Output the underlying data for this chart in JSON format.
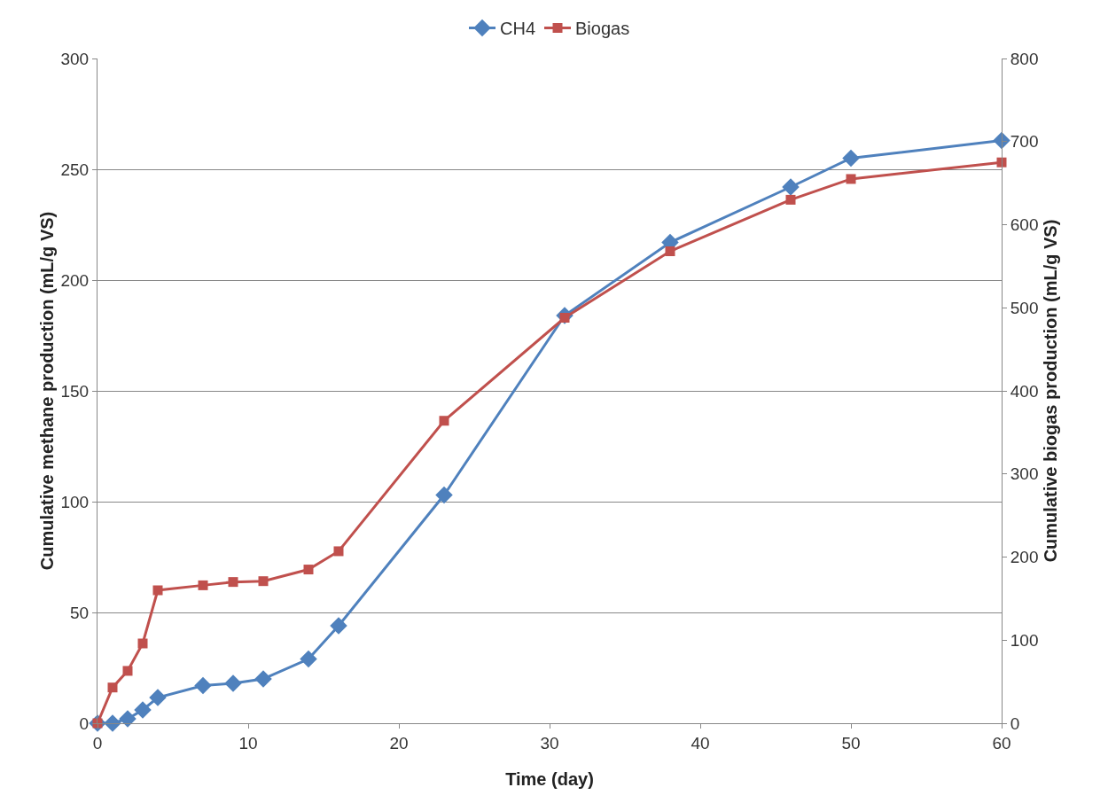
{
  "chart_data": {
    "type": "line",
    "xlabel": "Time (day)",
    "ylabel": "Cumulative methane production (mL/g VS)",
    "y2label": "Cumulative biogas production (mL/g VS)",
    "x": [
      0,
      1,
      2,
      3,
      4,
      7,
      9,
      11,
      14,
      16,
      23,
      31,
      38,
      46,
      50,
      60
    ],
    "xlim": [
      0,
      60
    ],
    "xticks": [
      0,
      10,
      20,
      30,
      40,
      50,
      60
    ],
    "ylim": [
      0,
      300
    ],
    "yticks": [
      0,
      50,
      100,
      150,
      200,
      250,
      300
    ],
    "y2lim": [
      0,
      800
    ],
    "y2ticks": [
      0,
      100,
      200,
      300,
      400,
      500,
      600,
      700,
      800
    ],
    "grid": "y",
    "legend": "top",
    "series": [
      {
        "name": "CH4",
        "color": "#4f81bd",
        "marker": "diamond",
        "values": [
          0,
          0,
          2,
          6,
          11.6,
          17,
          18,
          20,
          29,
          44,
          103,
          184,
          217,
          242,
          255,
          263
        ]
      },
      {
        "name": "Biogas",
        "color": "#c0504d",
        "marker": "square",
        "axis": "y2",
        "values": [
          0,
          43,
          63,
          96,
          160,
          166,
          170,
          171,
          185,
          207,
          364,
          488,
          568,
          630,
          655,
          675
        ]
      }
    ]
  }
}
